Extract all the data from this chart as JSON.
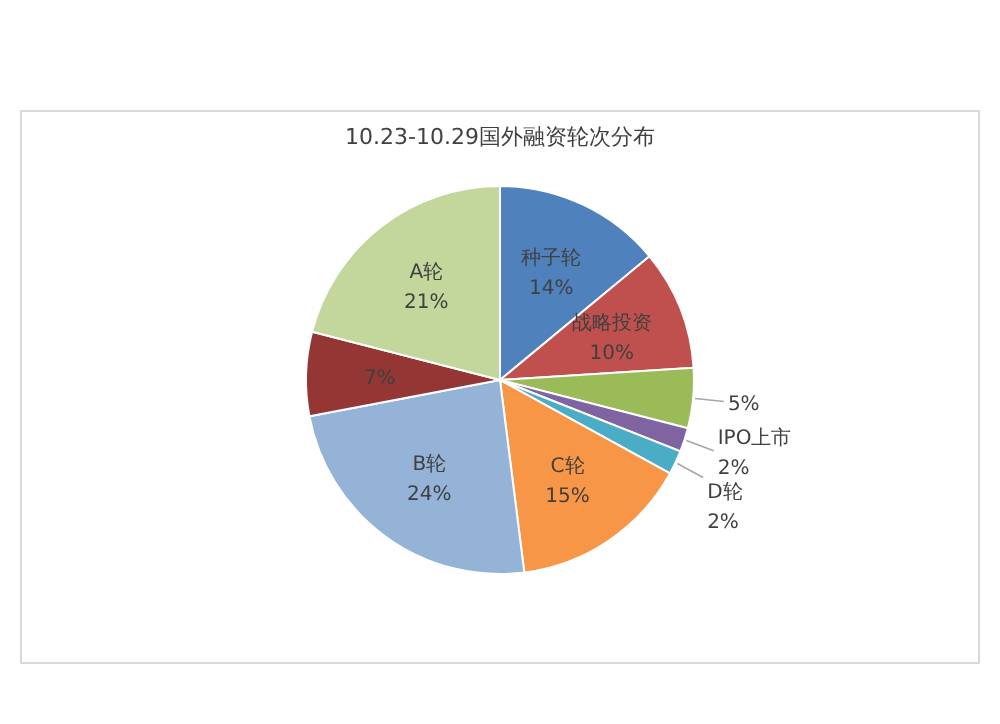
{
  "chart_data": {
    "type": "pie",
    "title": "10.23-10.29国外融资轮次分布",
    "categories": [
      "种子轮",
      "战略投资",
      null,
      "IPO上市",
      "D轮",
      "C轮",
      "B轮",
      null,
      "A轮"
    ],
    "values": [
      14,
      10,
      5,
      2,
      2,
      15,
      24,
      7,
      21
    ],
    "value_labels": [
      "14%",
      "10%",
      "5%",
      "2%",
      "2%",
      "15%",
      "24%",
      "7%",
      "21%"
    ],
    "colors": [
      "#4f81bd",
      "#c0504d",
      "#9bbb59",
      "#8064a2",
      "#4bacc6",
      "#f79646",
      "#95b3d7",
      "#943634",
      "#c3d69b"
    ]
  }
}
